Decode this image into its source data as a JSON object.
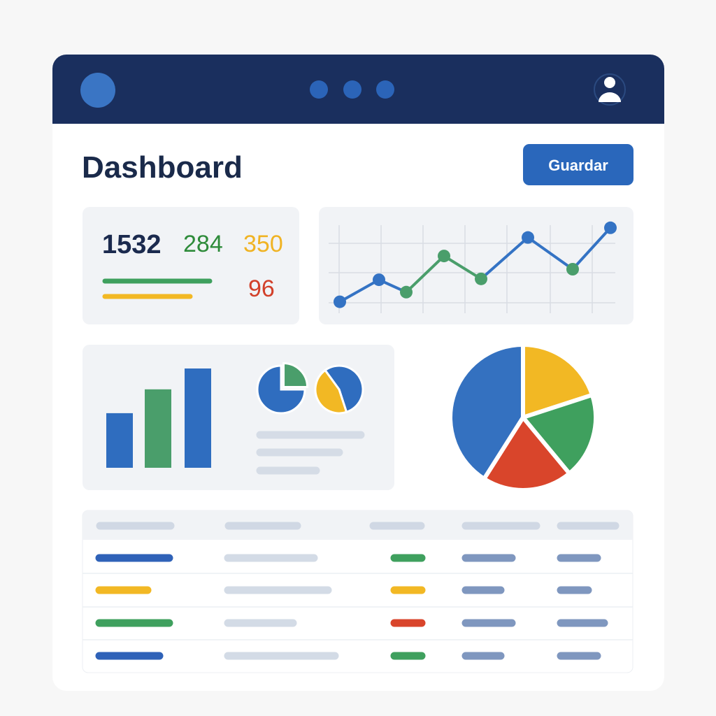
{
  "header": {
    "title": "Dashboard",
    "button": "Guardar"
  },
  "stats": {
    "values": [
      1532,
      284,
      350,
      96
    ],
    "colors": [
      "#1b2a4e",
      "#2e8b3a",
      "#f0b323",
      "#d2402a"
    ]
  },
  "line_chart": {
    "type": "line",
    "values": [
      13,
      38,
      24,
      65,
      39,
      86,
      50,
      97
    ],
    "ylim": [
      0,
      100
    ],
    "point_colors": [
      "#3473c4",
      "#3473c4",
      "#4a9e6b",
      "#4a9e6b",
      "#4a9e6b",
      "#3473c4",
      "#4a9e6b",
      "#3473c4"
    ]
  },
  "bar_chart": {
    "type": "bar",
    "values": [
      55,
      79,
      100
    ],
    "ylim": [
      0,
      100
    ],
    "colors": [
      "#2f6dbf",
      "#4a9e6b",
      "#2f6dbf"
    ]
  },
  "mini_pies": [
    {
      "type": "pie",
      "values": [
        25,
        75
      ],
      "colors": [
        "#4a9e6b",
        "#2f6dbf"
      ]
    },
    {
      "type": "pie",
      "values": [
        55,
        45
      ],
      "colors": [
        "#2f6dbf",
        "#f2b824"
      ]
    }
  ],
  "pie_chart": {
    "type": "pie",
    "values": [
      20,
      19,
      20,
      41
    ],
    "colors": [
      "#f2b824",
      "#3fa05e",
      "#d9452b",
      "#3471c0"
    ]
  }
}
